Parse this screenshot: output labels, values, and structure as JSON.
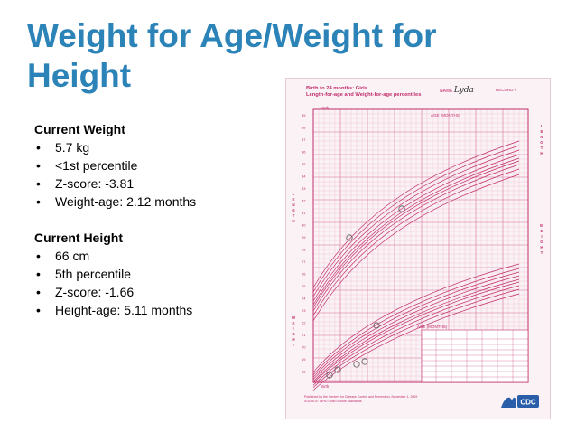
{
  "slide": {
    "title": "Weight for Age/Weight for Height",
    "colors": {
      "title": "#2b83b8",
      "chart_lines": "#c12d6c"
    }
  },
  "weight": {
    "heading": "Current Weight",
    "items": [
      "5.7 kg",
      "<1st percentile",
      "Z-score: -3.81",
      "Weight-age: 2.12 months"
    ]
  },
  "height": {
    "heading": "Current Height",
    "items": [
      "66 cm",
      "5th percentile",
      "Z-score: -1.66",
      "Height-age: 5.11 months"
    ]
  },
  "growth_chart": {
    "header_line1": "Birth to 24 months: Girls",
    "header_line2": "Length-for-age and Weight-for-age percentiles",
    "name_label": "NAME",
    "name_value": "Lyda",
    "record_label": "RECORD #",
    "age_axis_label": "AGE (MONTHS)",
    "birth_label": "Birth",
    "length_side": "LENGTH",
    "weight_side": "WEIGHT",
    "footer": "Published by the Centers for Disease Control and Prevention, November 1, 2009 SOURCE: WHO Child Growth Standards",
    "logo_text": "CDC"
  }
}
